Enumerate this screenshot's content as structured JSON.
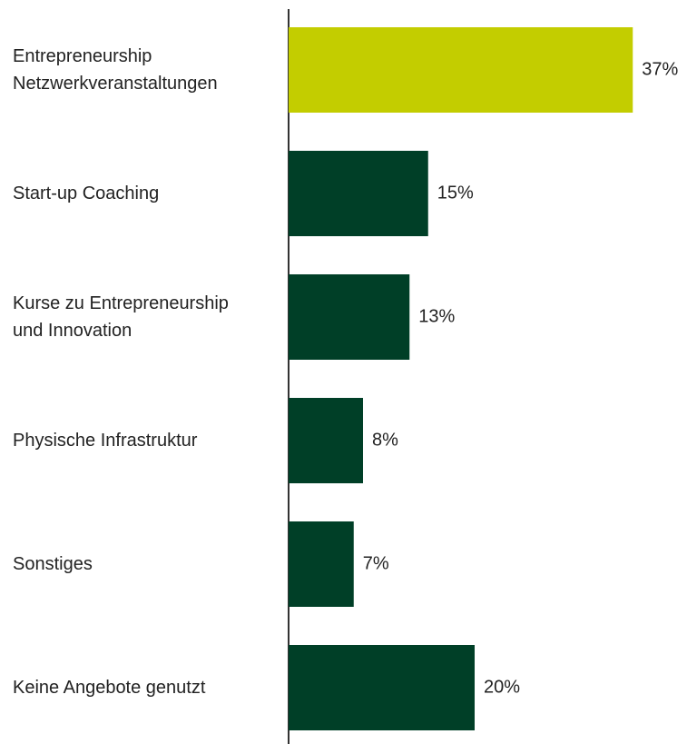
{
  "chart_data": {
    "type": "bar",
    "orientation": "horizontal",
    "categories": [
      "Entrepreneurship\nNetzwerkveranstaltungen",
      "Start-up Coaching",
      "Kurse zu Entrepreneurship\nund Innovation",
      "Physische Infrastruktur",
      "Sonstiges",
      "Keine Angebote genutzt"
    ],
    "values": [
      37,
      15,
      13,
      8,
      7,
      20
    ],
    "value_labels": [
      "37%",
      "15%",
      "13%",
      "8%",
      "7%",
      "20%"
    ],
    "colors": [
      "#c3cd00",
      "#003f27",
      "#003f27",
      "#003f27",
      "#003f27",
      "#003f27"
    ],
    "xlim": [
      0,
      40
    ]
  }
}
